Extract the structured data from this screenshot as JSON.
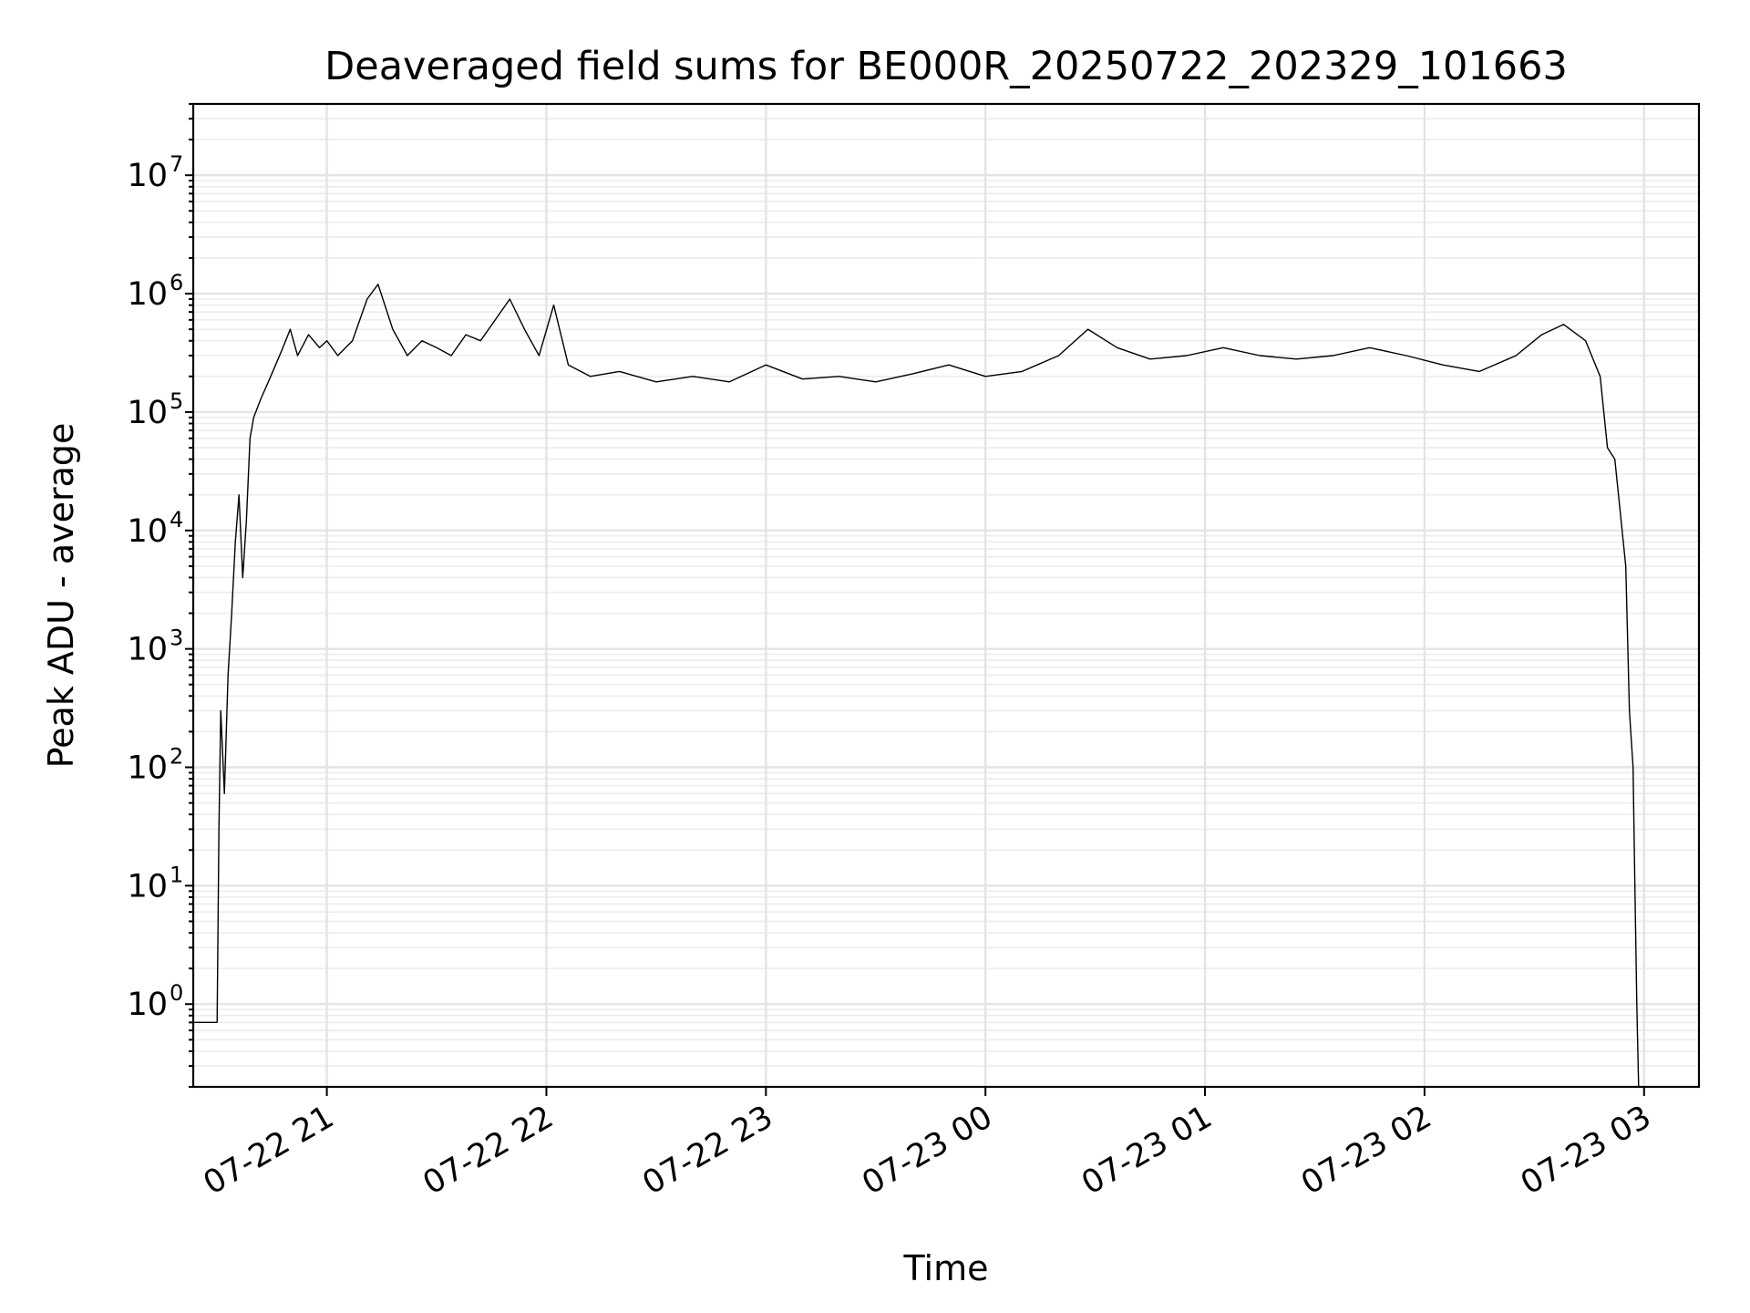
{
  "chart_data": {
    "type": "line",
    "title": "Deaveraged field sums for BE000R_20250722_202329_101663",
    "xlabel": "Time",
    "ylabel": "Peak ADU - average",
    "yscale": "log",
    "ylim": [
      0.2,
      40000000
    ],
    "xlim": [
      "2025-07-22T20:23:29",
      "2025-07-23T03:15:00"
    ],
    "grid": true,
    "grid_minor": true,
    "x_ticks": [
      {
        "label": "07-22 21",
        "value": "2025-07-22T21:00:00"
      },
      {
        "label": "07-22 22",
        "value": "2025-07-22T22:00:00"
      },
      {
        "label": "07-22 23",
        "value": "2025-07-22T23:00:00"
      },
      {
        "label": "07-23 00",
        "value": "2025-07-23T00:00:00"
      },
      {
        "label": "07-23 01",
        "value": "2025-07-23T01:00:00"
      },
      {
        "label": "07-23 02",
        "value": "2025-07-23T02:00:00"
      },
      {
        "label": "07-23 03",
        "value": "2025-07-23T03:00:00"
      }
    ],
    "y_ticks": [
      {
        "base": "10",
        "exp": "0",
        "value": 1
      },
      {
        "base": "10",
        "exp": "1",
        "value": 10
      },
      {
        "base": "10",
        "exp": "2",
        "value": 100
      },
      {
        "base": "10",
        "exp": "3",
        "value": 1000
      },
      {
        "base": "10",
        "exp": "4",
        "value": 10000
      },
      {
        "base": "10",
        "exp": "5",
        "value": 100000
      },
      {
        "base": "10",
        "exp": "6",
        "value": 1000000
      },
      {
        "base": "10",
        "exp": "7",
        "value": 10000000
      }
    ],
    "series": [
      {
        "color": "#000000",
        "x": [
          "2025-07-22T20:23:29",
          "2025-07-22T20:30:00",
          "2025-07-22T20:30:30",
          "2025-07-22T20:31:00",
          "2025-07-22T20:32:00",
          "2025-07-22T20:33:00",
          "2025-07-22T20:34:00",
          "2025-07-22T20:35:00",
          "2025-07-22T20:36:00",
          "2025-07-22T20:37:00",
          "2025-07-22T20:38:00",
          "2025-07-22T20:39:00",
          "2025-07-22T20:40:00",
          "2025-07-22T20:42:00",
          "2025-07-22T20:44:00",
          "2025-07-22T20:46:00",
          "2025-07-22T20:48:00",
          "2025-07-22T20:50:00",
          "2025-07-22T20:52:00",
          "2025-07-22T20:55:00",
          "2025-07-22T20:58:00",
          "2025-07-22T21:00:00",
          "2025-07-22T21:03:00",
          "2025-07-22T21:07:00",
          "2025-07-22T21:11:00",
          "2025-07-22T21:14:00",
          "2025-07-22T21:18:00",
          "2025-07-22T21:22:00",
          "2025-07-22T21:26:00",
          "2025-07-22T21:30:00",
          "2025-07-22T21:34:00",
          "2025-07-22T21:38:00",
          "2025-07-22T21:42:00",
          "2025-07-22T21:46:00",
          "2025-07-22T21:50:00",
          "2025-07-22T21:54:00",
          "2025-07-22T21:58:00",
          "2025-07-22T22:02:00",
          "2025-07-22T22:06:00",
          "2025-07-22T22:12:00",
          "2025-07-22T22:20:00",
          "2025-07-22T22:30:00",
          "2025-07-22T22:40:00",
          "2025-07-22T22:50:00",
          "2025-07-22T23:00:00",
          "2025-07-22T23:10:00",
          "2025-07-22T23:20:00",
          "2025-07-22T23:30:00",
          "2025-07-22T23:40:00",
          "2025-07-22T23:50:00",
          "2025-07-23T00:00:00",
          "2025-07-23T00:10:00",
          "2025-07-23T00:20:00",
          "2025-07-23T00:28:00",
          "2025-07-23T00:36:00",
          "2025-07-23T00:45:00",
          "2025-07-23T00:55:00",
          "2025-07-23T01:05:00",
          "2025-07-23T01:15:00",
          "2025-07-23T01:25:00",
          "2025-07-23T01:35:00",
          "2025-07-23T01:45:00",
          "2025-07-23T01:55:00",
          "2025-07-23T02:05:00",
          "2025-07-23T02:15:00",
          "2025-07-23T02:25:00",
          "2025-07-23T02:32:00",
          "2025-07-23T02:38:00",
          "2025-07-23T02:44:00",
          "2025-07-23T02:48:00",
          "2025-07-23T02:50:00",
          "2025-07-23T02:52:00",
          "2025-07-23T02:54:00",
          "2025-07-23T02:55:00",
          "2025-07-23T02:56:00",
          "2025-07-23T02:57:00",
          "2025-07-23T02:57:30",
          "2025-07-23T02:58:00",
          "2025-07-23T02:58:30",
          "2025-07-23T02:59:00"
        ],
        "y": [
          0.7,
          0.7,
          30,
          300,
          60,
          600,
          2000,
          8000,
          20000,
          4000,
          12000,
          60000,
          90000,
          130000,
          180000,
          250000,
          350000,
          500000,
          300000,
          450000,
          350000,
          400000,
          300000,
          400000,
          900000,
          1200000,
          500000,
          300000,
          400000,
          350000,
          300000,
          450000,
          400000,
          600000,
          900000,
          500000,
          300000,
          800000,
          250000,
          200000,
          220000,
          180000,
          200000,
          180000,
          250000,
          190000,
          200000,
          180000,
          210000,
          250000,
          200000,
          220000,
          300000,
          500000,
          350000,
          280000,
          300000,
          350000,
          300000,
          280000,
          300000,
          350000,
          300000,
          250000,
          220000,
          300000,
          450000,
          550000,
          400000,
          200000,
          50000,
          40000,
          10000,
          5000,
          300,
          100,
          10,
          1,
          0.2,
          0.2
        ]
      }
    ]
  }
}
